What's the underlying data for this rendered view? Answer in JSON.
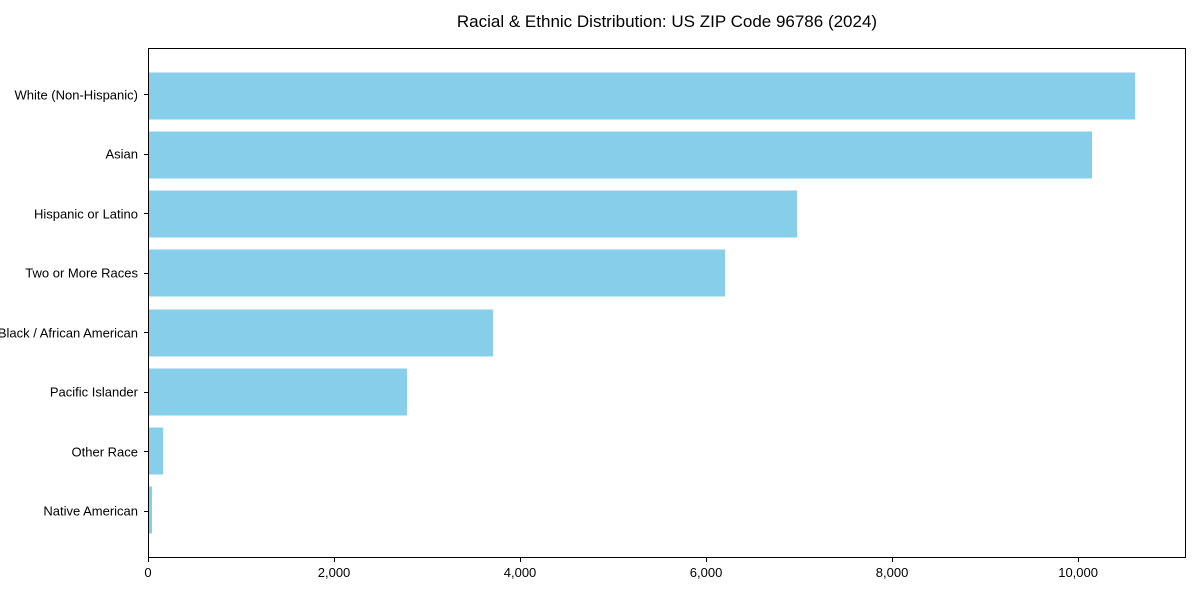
{
  "chart_data": {
    "type": "bar",
    "orientation": "horizontal",
    "title": "Racial & Ethnic Distribution: US ZIP Code 96786 (2024)",
    "categories": [
      "White (Non-Hispanic)",
      "Asian",
      "Hispanic or Latino",
      "Two or More Races",
      "Black / African American",
      "Pacific Islander",
      "Other Race",
      "Native American"
    ],
    "values": [
      10620,
      10160,
      6980,
      6210,
      3710,
      2780,
      150,
      30
    ],
    "xlabel": "",
    "ylabel": "",
    "xlim": [
      0,
      11160
    ],
    "x_ticks": [
      0,
      2000,
      4000,
      6000,
      8000,
      10000
    ],
    "x_tick_labels": [
      "0",
      "2,000",
      "4,000",
      "6,000",
      "8,000",
      "10,000"
    ],
    "bar_color": "#87CEEB",
    "spine_color": "#000000",
    "grid": false,
    "legend": false
  }
}
